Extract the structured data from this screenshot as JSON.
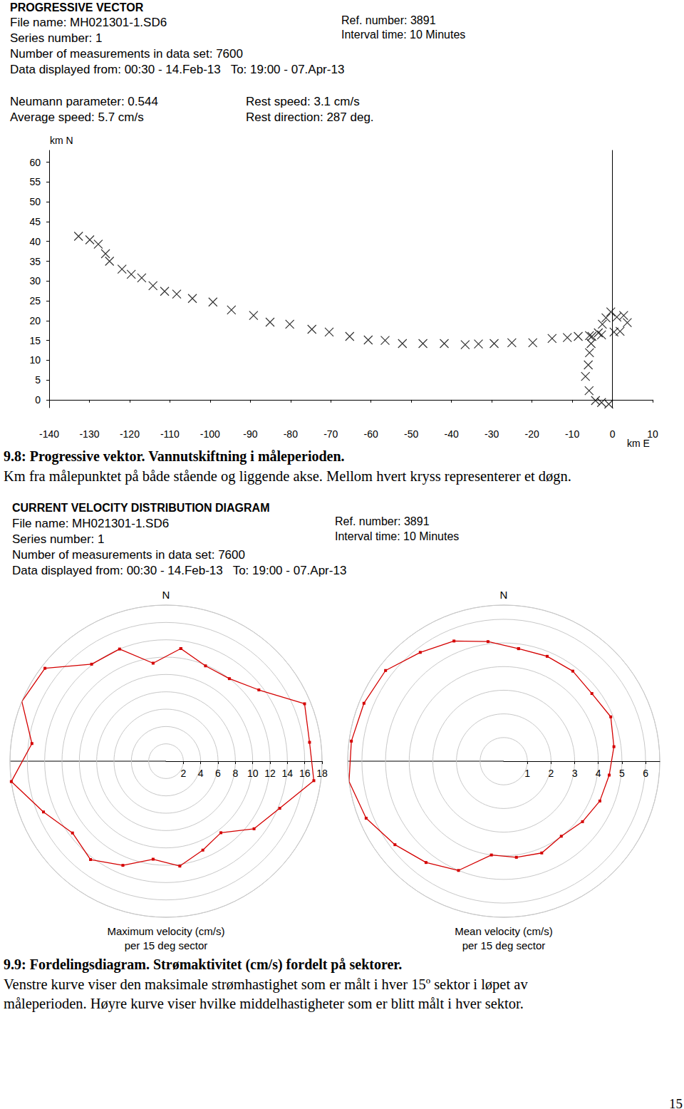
{
  "document": {
    "vector_header": {
      "title": "PROGRESSIVE VECTOR",
      "left_lines": [
        "File name: MH021301-1.SD6",
        "Series number: 1",
        "Number of measurements in data set: 7600",
        "Data displayed from: 00:30 - 14.Feb-13   To: 19:00 - 07.Apr-13"
      ],
      "right_lines": [
        "Ref. number: 3891",
        "Interval time: 10 Minutes"
      ],
      "stats_left": [
        "Neumann parameter: 0.544",
        "Average speed: 5.7 cm/s"
      ],
      "stats_right": [
        "Rest speed: 3.1 cm/s",
        "Rest direction: 287 deg."
      ]
    },
    "caption_1": {
      "heading": "9.8: Progressive vektor. Vannutskiftning i måleperioden.",
      "lines": [
        "Km fra målepunktet på både stående og liggende akse. Mellom hvert kryss representerer et døgn."
      ]
    },
    "distribution_header": {
      "title": "CURRENT VELOCITY DISTRIBUTION DIAGRAM",
      "left_lines": [
        "File name: MH021301-1.SD6",
        "Series number: 1",
        "Number of measurements in data set: 7600",
        "Data displayed from: 00:30 - 14.Feb-13   To: 19:00 - 07.Apr-13"
      ],
      "right_lines": [
        "Ref. number: 3891",
        "Interval time: 10 Minutes"
      ]
    },
    "caption_2": {
      "heading": "9.9: Fordelingsdiagram. Strømaktivitet (cm/s) fordelt på sektorer.",
      "lines": [
        "Venstre kurve viser den maksimale strømhastighet som er målt i hver 15º sektor i løpet av",
        "måleperioden. Høyre kurve viser hvilke middelhastigheter som er blitt målt i hver sektor."
      ]
    },
    "page_number": "15"
  },
  "chart_data": [
    {
      "type": "scatter",
      "xlabel": "km E",
      "ylabel": "km N",
      "x": [
        -0.9,
        -2.7,
        -4.2,
        -5.8,
        -6.7,
        -6.0,
        -5.7,
        -5.3,
        -5.1,
        -3.5,
        -2.5,
        -1.6,
        -0.4,
        1.1,
        2.8,
        3.7,
        1.9,
        0.4,
        -2.7,
        -5.7,
        -8.5,
        -11.2,
        -15.0,
        -19.8,
        -25.0,
        -29.4,
        -33.3,
        -36.6,
        -41.8,
        -47.1,
        -52.2,
        -56.5,
        -60.7,
        -65.3,
        -70.4,
        -74.7,
        -80.2,
        -85.1,
        -89.2,
        -94.7,
        -99.3,
        -104.4,
        -108.3,
        -111.3,
        -114.2,
        -117.0,
        -119.6,
        -121.9,
        -125.0,
        -126.0,
        -127.8,
        -129.9,
        -132.7
      ],
      "y": [
        -1.1,
        -0.7,
        -0.2,
        2.3,
        5.9,
        8.8,
        11.9,
        14.2,
        16.0,
        16.9,
        19.1,
        20.7,
        22.2,
        20.9,
        21.3,
        19.5,
        17.3,
        17.1,
        16.4,
        16.2,
        16.0,
        15.7,
        15.5,
        14.4,
        14.4,
        14.2,
        14.1,
        13.9,
        14.2,
        14.2,
        14.2,
        15.0,
        15.1,
        16.0,
        17.1,
        17.8,
        19.1,
        19.6,
        21.3,
        22.7,
        24.7,
        25.6,
        26.7,
        27.4,
        28.8,
        30.8,
        31.7,
        33.0,
        35.0,
        36.9,
        39.3,
        40.4,
        41.3
      ],
      "xlim": [
        -140,
        10
      ],
      "ylim": [
        -2,
        63
      ],
      "xticks": [
        -140,
        -130,
        -120,
        -110,
        -100,
        -90,
        -80,
        -70,
        -60,
        -50,
        -40,
        -30,
        -20,
        -10,
        0,
        10
      ],
      "yticks": [
        0,
        5,
        10,
        15,
        20,
        25,
        30,
        35,
        40,
        45,
        50,
        55,
        60
      ],
      "marker": "x",
      "color": "#000000",
      "grid": false
    },
    {
      "type": "polar",
      "title": "Maximum velocity (cm/s)",
      "subtitle": "per 15 deg sector",
      "annotations": [
        "N"
      ],
      "angles": [
        7.5,
        22.5,
        37.5,
        52.5,
        67.5,
        82.5,
        97.5,
        112.5,
        127.5,
        142.5,
        157.5,
        172.5,
        187.5,
        202.5,
        217.5,
        232.5,
        247.5,
        262.5,
        277.5,
        292.5,
        307.5,
        322.5,
        337.5,
        352.5
      ],
      "values": [
        13.1,
        11.9,
        12.0,
        13.5,
        17.3,
        16.7,
        17.2,
        14.2,
        12.8,
        10.4,
        11.1,
        12.2,
        11.4,
        13.0,
        14.3,
        13.6,
        15.3,
        18.0,
        15.6,
        18.0,
        17.6,
        14.1,
        14.0,
        11.4
      ],
      "rlim": [
        0,
        18
      ],
      "rticks": [
        2,
        4,
        6,
        8,
        10,
        12,
        14,
        16,
        18
      ],
      "color": "#d40000",
      "marker": "square",
      "line_style": "solid",
      "grid": true
    },
    {
      "type": "polar",
      "title": "Mean velocity (cm/s)",
      "subtitle": "per 15 deg sector",
      "annotations": [
        "N"
      ],
      "angles": [
        7.5,
        22.5,
        37.5,
        52.5,
        67.5,
        82.5,
        97.5,
        112.5,
        127.5,
        142.5,
        157.5,
        172.5,
        187.5,
        202.5,
        217.5,
        232.5,
        247.5,
        262.5,
        277.5,
        292.5,
        307.5,
        322.5,
        337.5,
        352.5
      ],
      "values": [
        4.8,
        4.8,
        4.8,
        4.7,
        4.9,
        4.7,
        4.5,
        4.4,
        4.2,
        4.0,
        4.2,
        4.1,
        4.0,
        5.0,
        5.4,
        5.8,
        6.3,
        6.6,
        6.5,
        6.4,
        6.3,
        5.8,
        5.5,
        5.1
      ],
      "rlim": [
        0,
        6.6
      ],
      "rticks": [
        1,
        2,
        3,
        4,
        5,
        6
      ],
      "color": "#d40000",
      "marker": "square",
      "line_style": "solid",
      "grid": true
    }
  ]
}
